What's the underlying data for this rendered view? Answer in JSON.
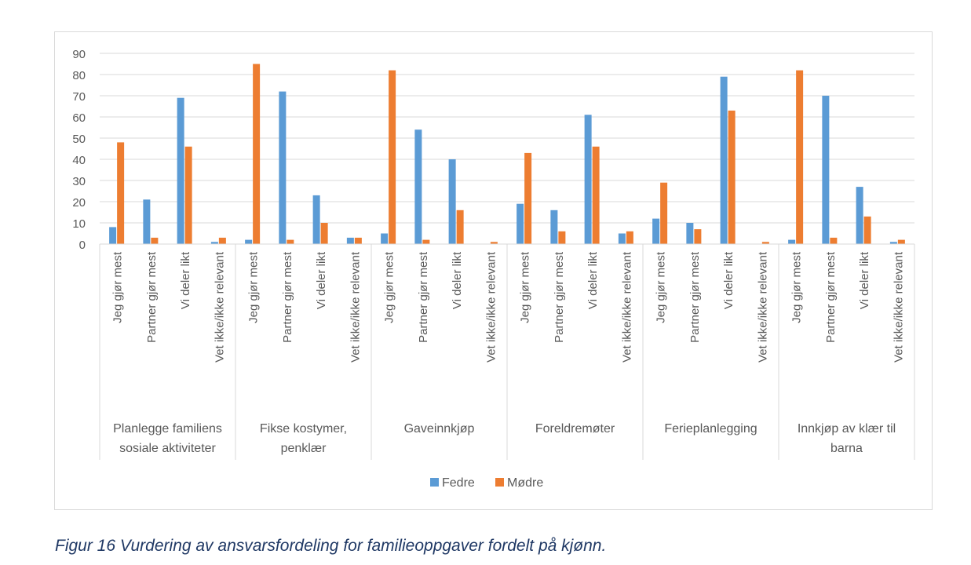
{
  "caption": "Figur 16 Vurdering av ansvarsfordeling for familieoppgaver fordelt på kjønn.",
  "chart_data": {
    "type": "bar",
    "title": "",
    "xlabel": "",
    "ylabel": "",
    "ylim": [
      0,
      90
    ],
    "yticks": [
      0,
      10,
      20,
      30,
      40,
      50,
      60,
      70,
      80,
      90
    ],
    "grid": true,
    "legend_position": "bottom",
    "groups": [
      {
        "label": "Planlegge familiens sosiale aktiviteter",
        "label_lines": [
          "Planlegge familiens",
          "sosiale aktiviteter"
        ]
      },
      {
        "label": "Fikse kostymer, penklær",
        "label_lines": [
          "Fikse kostymer,",
          "penklær"
        ]
      },
      {
        "label": "Gaveinnkjøp",
        "label_lines": [
          "Gaveinnkjøp"
        ]
      },
      {
        "label": "Foreldremøter",
        "label_lines": [
          "Foreldremøter"
        ]
      },
      {
        "label": "Ferieplanlegging",
        "label_lines": [
          "Ferieplanlegging"
        ]
      },
      {
        "label": "Innkjøp av klær til barna",
        "label_lines": [
          "Innkjøp av klær til",
          "barna"
        ]
      }
    ],
    "subcategories": [
      "Jeg gjør mest",
      "Partner gjør mest",
      "Vi deler likt",
      "Vet ikke/ikke relevant"
    ],
    "series": [
      {
        "name": "Fedre",
        "color": "#5b9bd5",
        "values": [
          8,
          21,
          69,
          1,
          2,
          72,
          23,
          3,
          5,
          54,
          40,
          0,
          19,
          16,
          61,
          5,
          12,
          10,
          79,
          0,
          2,
          70,
          27,
          1
        ]
      },
      {
        "name": "Mødre",
        "color": "#ed7d31",
        "values": [
          48,
          3,
          46,
          3,
          85,
          2,
          10,
          3,
          82,
          2,
          16,
          1,
          43,
          6,
          46,
          6,
          29,
          7,
          63,
          1,
          82,
          3,
          13,
          2
        ]
      }
    ]
  }
}
